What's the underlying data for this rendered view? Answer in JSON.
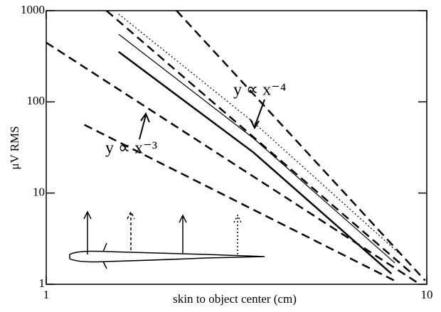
{
  "chart_data": {
    "type": "line",
    "xlabel": "skin to object center (cm)",
    "ylabel": "μV RMS",
    "xscale": "log",
    "yscale": "log",
    "xlim": [
      1,
      10
    ],
    "ylim": [
      1,
      1000
    ],
    "xticks": [
      1,
      10
    ],
    "yticks": [
      1,
      10,
      100,
      1000
    ],
    "annotations": [
      "y ∝ x⁻⁴",
      "y ∝ x⁻³"
    ],
    "series": [
      {
        "color": "#000",
        "style": "dashed",
        "x": [
          1,
          9.6
        ],
        "values": [
          447,
          1
        ]
      },
      {
        "color": "#000",
        "style": "dashed",
        "x": [
          1.26,
          8.25
        ],
        "values": [
          56,
          1.09
        ]
      },
      {
        "color": "#000",
        "style": "dashed",
        "x": [
          1.44,
          9.15
        ],
        "values": [
          1000,
          1.31
        ]
      },
      {
        "color": "#000",
        "style": "dashed",
        "x": [
          2.2,
          9.9
        ],
        "values": [
          1000,
          1.1
        ]
      },
      {
        "color": "#000",
        "style": "thick",
        "x": [
          1.55,
          3.5,
          8.07
        ],
        "values": [
          354,
          28,
          1.31
        ]
      },
      {
        "color": "#000",
        "style": "solid",
        "x": [
          1.55,
          3.5,
          8.25
        ],
        "values": [
          552,
          40,
          1.71
        ]
      },
      {
        "color": "#000",
        "style": "dotted",
        "x": [
          1.55,
          3.5,
          8.4
        ],
        "values": [
          917,
          60,
          2.24
        ]
      }
    ]
  }
}
